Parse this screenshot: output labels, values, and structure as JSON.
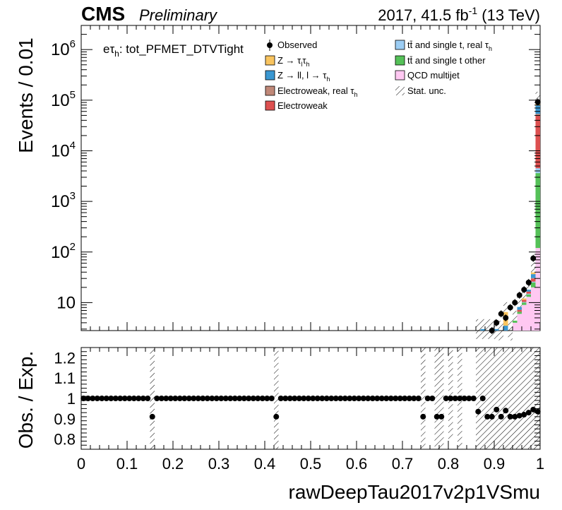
{
  "header": {
    "experiment": "CMS",
    "status": "Preliminary",
    "lumi_main": "2017, 41.5 fb",
    "lumi_sup": "-1",
    "lumi_tail": " (13 TeV)"
  },
  "channel_label": {
    "prefix": "eτ",
    "sub": "h",
    "suffix": ": tot_PFMET_DTVTight"
  },
  "legend": {
    "items": [
      {
        "label": "Observed",
        "kind": "marker",
        "color": "#000000"
      },
      {
        "label": "Z → τ",
        "sub": "l",
        "label2": "τ",
        "sub2": "h",
        "kind": "box",
        "color": "#f9c45f"
      },
      {
        "label": "Z → ll, l → τ",
        "sub": "h",
        "kind": "box",
        "color": "#3a97d1"
      },
      {
        "label": "Electroweak, real τ",
        "sub": "h",
        "kind": "box",
        "color": "#c08878"
      },
      {
        "label": "Electroweak",
        "kind": "box",
        "color": "#dd5050"
      },
      {
        "label": "tt̄ and single t, real τ",
        "sub": "h",
        "kind": "box",
        "color": "#9ccdf4"
      },
      {
        "label": "tt̄ and single t other",
        "kind": "box",
        "color": "#55c158"
      },
      {
        "label": "QCD multijet",
        "kind": "box",
        "color": "#ffc8f2"
      },
      {
        "label": "Stat. unc.",
        "kind": "hatch",
        "color": "#000000"
      }
    ]
  },
  "chart_data": [
    {
      "type": "bar",
      "subtype": "stacked-histogram-with-data",
      "title": "",
      "xlabel": "rawDeepTau2017v2p1VSmu",
      "ylabel": "Events / 0.01",
      "xlim": [
        0,
        1
      ],
      "ylim": [
        2.8,
        3000000
      ],
      "yscale": "log",
      "y_ticks": [
        {
          "label": "10",
          "value": 10
        },
        {
          "label": "10",
          "sup": "2",
          "value": 100
        },
        {
          "label": "10",
          "sup": "3",
          "value": 1000
        },
        {
          "label": "10",
          "sup": "4",
          "value": 10000
        },
        {
          "label": "10",
          "sup": "5",
          "value": 100000
        },
        {
          "label": "10",
          "sup": "6",
          "value": 1000000
        }
      ],
      "bin_width": 0.01,
      "series": [
        {
          "name": "QCD multijet",
          "color": "#ffc8f2",
          "bins": [
            [
              0.91,
              0.5
            ],
            [
              0.92,
              1.5
            ],
            [
              0.93,
              2.5
            ],
            [
              0.94,
              4
            ],
            [
              0.95,
              6
            ],
            [
              0.96,
              9
            ],
            [
              0.97,
              13
            ],
            [
              0.98,
              20
            ],
            [
              0.99,
              120
            ]
          ]
        },
        {
          "name": "tt̄ and single t other",
          "color": "#55c158",
          "bins": [
            [
              0.94,
              0.4
            ],
            [
              0.95,
              0.6
            ],
            [
              0.96,
              1
            ],
            [
              0.97,
              1.5
            ],
            [
              0.98,
              5
            ],
            [
              0.99,
              3500
            ]
          ]
        },
        {
          "name": "tt̄ and single t, real τh",
          "color": "#9ccdf4",
          "bins": [
            [
              0.96,
              0.3
            ],
            [
              0.97,
              0.5
            ],
            [
              0.98,
              1
            ],
            [
              0.99,
              900
            ]
          ]
        },
        {
          "name": "Electroweak",
          "color": "#dd5050",
          "bins": [
            [
              0.93,
              0.3
            ],
            [
              0.95,
              0.6
            ],
            [
              0.96,
              1
            ],
            [
              0.97,
              1.5
            ],
            [
              0.98,
              4
            ],
            [
              0.99,
              45000
            ]
          ]
        },
        {
          "name": "Electroweak, real τh",
          "color": "#c08878",
          "bins": [
            [
              0.98,
              0.5
            ],
            [
              0.99,
              4000
            ]
          ]
        },
        {
          "name": "Z → ll, l → τh",
          "color": "#3a97d1",
          "bins": [
            [
              0.87,
              3
            ],
            [
              0.9,
              3
            ],
            [
              0.92,
              2
            ],
            [
              0.95,
              1
            ],
            [
              0.97,
              1.5
            ],
            [
              0.98,
              6
            ],
            [
              0.99,
              25000
            ]
          ]
        },
        {
          "name": "Z → τlτh",
          "color": "#f9c45f",
          "bins": [
            [
              0.91,
              2
            ],
            [
              0.92,
              3
            ],
            [
              0.96,
              0.8
            ],
            [
              0.98,
              3
            ],
            [
              0.99,
              15000
            ]
          ]
        }
      ],
      "observed": [
        [
          0.895,
          2.8
        ],
        [
          0.905,
          4
        ],
        [
          0.915,
          6
        ],
        [
          0.925,
          5
        ],
        [
          0.935,
          8
        ],
        [
          0.945,
          10
        ],
        [
          0.955,
          14
        ],
        [
          0.965,
          18
        ],
        [
          0.975,
          25
        ],
        [
          0.985,
          75
        ],
        [
          0.995,
          92000
        ]
      ],
      "stat_unc_bins": [
        0.86,
        0.87,
        0.88,
        0.89,
        0.9,
        0.91,
        0.92,
        0.93,
        0.94,
        0.95,
        0.96,
        0.97,
        0.98,
        0.99
      ]
    },
    {
      "type": "scatter",
      "title": "",
      "xlabel": "rawDeepTau2017v2p1VSmu",
      "ylabel": "Obs. / Exp.",
      "xlim": [
        0,
        1
      ],
      "ylim": [
        0.75,
        1.25
      ],
      "x_ticks": [
        "0",
        "0.1",
        "0.2",
        "0.3",
        "0.4",
        "0.5",
        "0.6",
        "0.7",
        "0.8",
        "0.9",
        "1"
      ],
      "y_ticks": [
        "0.8",
        "0.9",
        "1",
        "1.1",
        "1.2"
      ],
      "points": [
        [
          0.005,
          1
        ],
        [
          0.015,
          1
        ],
        [
          0.025,
          1
        ],
        [
          0.035,
          1
        ],
        [
          0.045,
          1
        ],
        [
          0.055,
          1
        ],
        [
          0.065,
          1
        ],
        [
          0.075,
          1
        ],
        [
          0.085,
          1
        ],
        [
          0.095,
          1
        ],
        [
          0.105,
          1
        ],
        [
          0.115,
          1
        ],
        [
          0.125,
          1
        ],
        [
          0.135,
          1
        ],
        [
          0.145,
          1
        ],
        [
          0.155,
          0.91
        ],
        [
          0.165,
          1
        ],
        [
          0.175,
          1
        ],
        [
          0.185,
          1
        ],
        [
          0.195,
          1
        ],
        [
          0.205,
          1
        ],
        [
          0.215,
          1
        ],
        [
          0.225,
          1
        ],
        [
          0.235,
          1
        ],
        [
          0.245,
          1
        ],
        [
          0.255,
          1
        ],
        [
          0.265,
          1
        ],
        [
          0.275,
          1
        ],
        [
          0.285,
          1
        ],
        [
          0.295,
          1
        ],
        [
          0.305,
          1
        ],
        [
          0.315,
          1
        ],
        [
          0.325,
          1
        ],
        [
          0.335,
          1
        ],
        [
          0.345,
          1
        ],
        [
          0.355,
          1
        ],
        [
          0.365,
          1
        ],
        [
          0.375,
          1
        ],
        [
          0.385,
          1
        ],
        [
          0.395,
          1
        ],
        [
          0.405,
          1
        ],
        [
          0.415,
          1
        ],
        [
          0.425,
          0.91
        ],
        [
          0.435,
          1
        ],
        [
          0.445,
          1
        ],
        [
          0.455,
          1
        ],
        [
          0.465,
          1
        ],
        [
          0.475,
          1
        ],
        [
          0.485,
          1
        ],
        [
          0.495,
          1
        ],
        [
          0.505,
          1
        ],
        [
          0.515,
          1
        ],
        [
          0.525,
          1
        ],
        [
          0.535,
          1
        ],
        [
          0.545,
          1
        ],
        [
          0.555,
          1
        ],
        [
          0.565,
          1
        ],
        [
          0.575,
          1
        ],
        [
          0.585,
          1
        ],
        [
          0.595,
          1
        ],
        [
          0.605,
          1
        ],
        [
          0.615,
          1
        ],
        [
          0.625,
          1
        ],
        [
          0.635,
          1
        ],
        [
          0.645,
          1
        ],
        [
          0.655,
          1
        ],
        [
          0.665,
          1
        ],
        [
          0.675,
          1
        ],
        [
          0.685,
          1
        ],
        [
          0.695,
          1
        ],
        [
          0.705,
          1
        ],
        [
          0.715,
          1
        ],
        [
          0.725,
          1
        ],
        [
          0.735,
          1
        ],
        [
          0.745,
          0.91
        ],
        [
          0.755,
          1
        ],
        [
          0.765,
          1
        ],
        [
          0.775,
          0.91
        ],
        [
          0.785,
          0.91
        ],
        [
          0.795,
          1
        ],
        [
          0.805,
          1
        ],
        [
          0.815,
          1
        ],
        [
          0.825,
          1
        ],
        [
          0.835,
          1
        ],
        [
          0.845,
          1
        ],
        [
          0.855,
          1
        ],
        [
          0.865,
          0.935
        ],
        [
          0.875,
          1
        ],
        [
          0.885,
          0.91
        ],
        [
          0.895,
          0.91
        ],
        [
          0.905,
          0.945
        ],
        [
          0.915,
          0.91
        ],
        [
          0.925,
          0.94
        ],
        [
          0.935,
          0.91
        ],
        [
          0.945,
          0.91
        ],
        [
          0.955,
          0.915
        ],
        [
          0.965,
          0.92
        ],
        [
          0.975,
          0.93
        ],
        [
          0.985,
          0.945
        ],
        [
          0.995,
          0.935
        ],
        [
          1.005,
          0.94
        ]
      ],
      "unc_bands": [
        {
          "x": [
            0.15,
            0.16
          ],
          "range": [
            0.75,
            1.25
          ]
        },
        {
          "x": [
            0.42,
            0.43
          ],
          "range": [
            0.75,
            1.25
          ]
        },
        {
          "x": [
            0.74,
            0.75
          ],
          "range": [
            0.75,
            1.25
          ]
        },
        {
          "x": [
            0.77,
            0.79
          ],
          "range": [
            0.75,
            1.25
          ]
        },
        {
          "x": [
            0.8,
            0.81
          ],
          "range": [
            0.8,
            1.25
          ]
        },
        {
          "x": [
            0.82,
            0.83
          ],
          "range": [
            0.75,
            1.25
          ]
        },
        {
          "x": [
            0.86,
            1.0
          ],
          "range": [
            0.75,
            1.25
          ]
        }
      ]
    }
  ]
}
